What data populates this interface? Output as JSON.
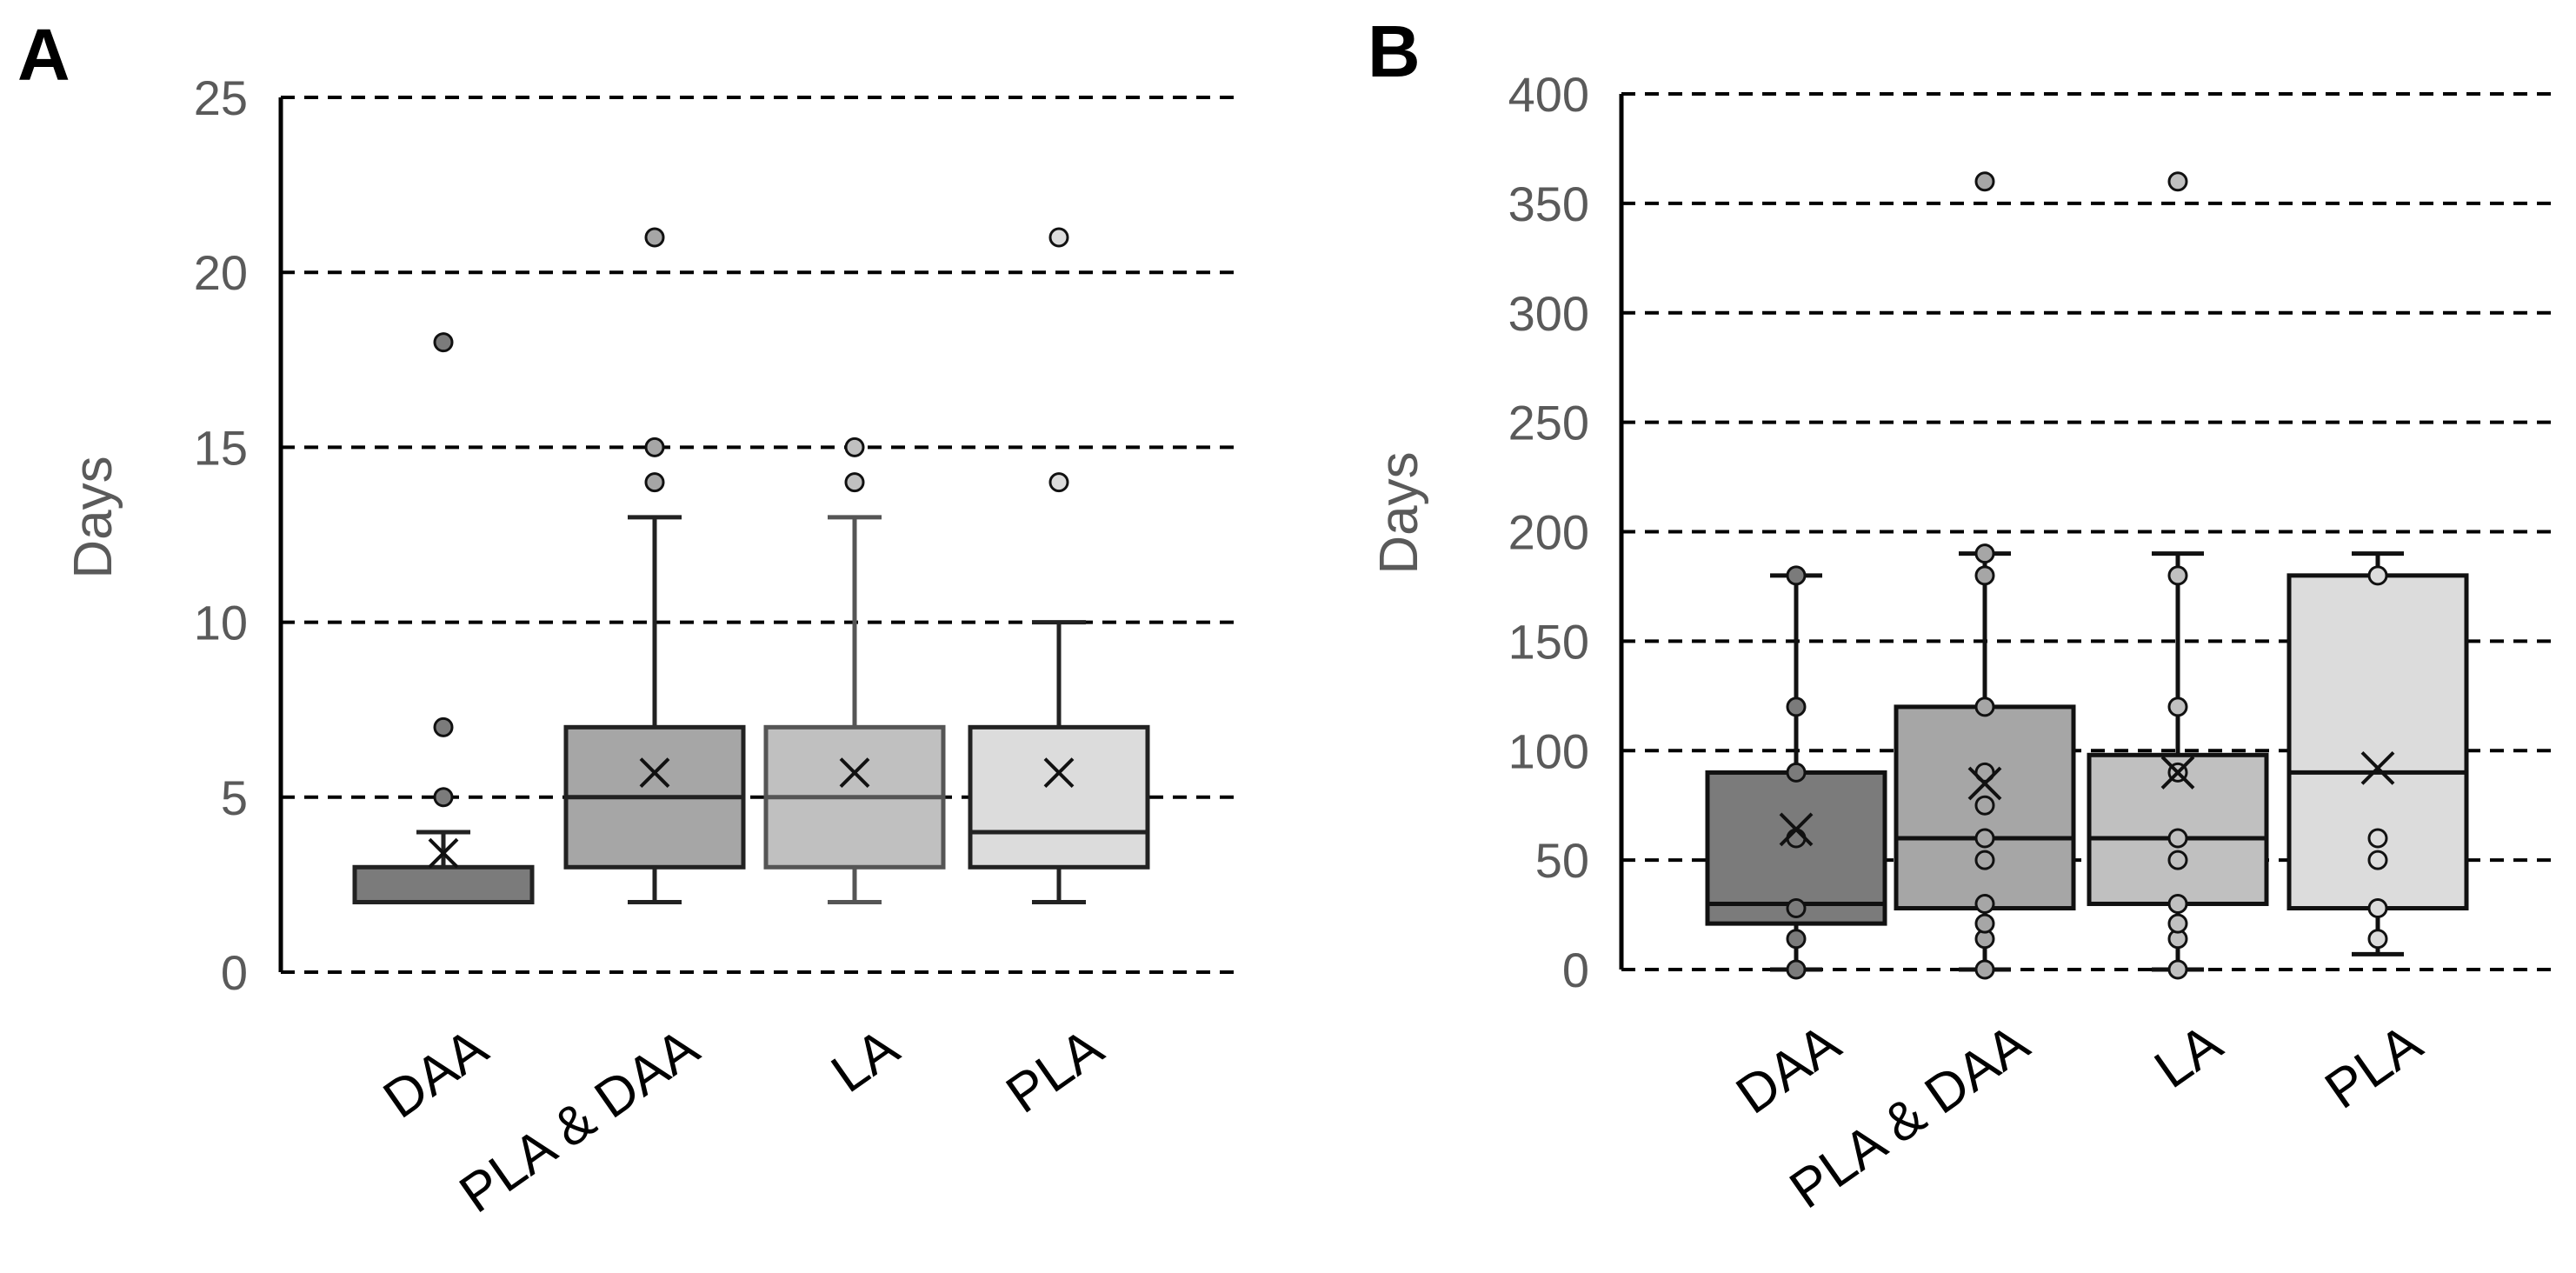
{
  "chart_data": [
    {
      "panel": "A",
      "type": "box",
      "title": "",
      "xlabel": "",
      "ylabel": "Days",
      "ylim": [
        0,
        25
      ],
      "yticks": [
        0,
        5,
        10,
        15,
        20,
        25
      ],
      "grid": "horizontal dashed",
      "categories": [
        "DAA",
        "PLA & DAA",
        "LA",
        "PLA"
      ],
      "boxes": [
        {
          "name": "DAA",
          "fill": "#7b7b7b",
          "stroke": "#222222",
          "min": 2,
          "q1": 2,
          "median": 2,
          "q3": 3,
          "max": 4,
          "mean": 3.4,
          "outliers": [
            5,
            7,
            18
          ],
          "points": []
        },
        {
          "name": "PLA & DAA",
          "fill": "#a6a6a6",
          "stroke": "#222222",
          "min": 2,
          "q1": 3,
          "median": 5,
          "q3": 7,
          "max": 13,
          "mean": 5.7,
          "outliers": [
            14,
            15,
            21
          ],
          "points": []
        },
        {
          "name": "LA",
          "fill": "#c0c0c0",
          "stroke": "#555555",
          "min": 2,
          "q1": 3,
          "median": 5,
          "q3": 7,
          "max": 13,
          "mean": 5.7,
          "outliers": [
            14,
            15
          ],
          "points": []
        },
        {
          "name": "PLA",
          "fill": "#dcdcdc",
          "stroke": "#222222",
          "min": 2,
          "q1": 3,
          "median": 4,
          "q3": 7,
          "max": 10,
          "mean": 5.7,
          "outliers": [
            14,
            21
          ],
          "points": []
        }
      ]
    },
    {
      "panel": "B",
      "type": "box",
      "title": "",
      "xlabel": "",
      "ylabel": "Days",
      "ylim": [
        0,
        400
      ],
      "yticks": [
        0,
        50,
        100,
        150,
        200,
        250,
        300,
        350,
        400
      ],
      "grid": "horizontal dashed",
      "categories": [
        "DAA",
        "PLA & DAA",
        "LA",
        "PLA"
      ],
      "boxes": [
        {
          "name": "DAA",
          "fill": "#7b7b7b",
          "stroke": "#111111",
          "min": 0,
          "q1": 21,
          "median": 30,
          "q3": 90,
          "max": 180,
          "mean": 64,
          "outliers": [],
          "points": [
            0,
            14,
            28,
            60,
            90,
            120,
            180
          ]
        },
        {
          "name": "PLA & DAA",
          "fill": "#a6a6a6",
          "stroke": "#111111",
          "min": 0,
          "q1": 28,
          "median": 60,
          "q3": 120,
          "max": 190,
          "mean": 85,
          "outliers": [
            360
          ],
          "points": [
            0,
            14,
            21,
            30,
            50,
            60,
            75,
            90,
            120,
            180,
            190
          ]
        },
        {
          "name": "LA",
          "fill": "#c0c0c0",
          "stroke": "#111111",
          "min": 0,
          "q1": 30,
          "median": 60,
          "q3": 98,
          "max": 190,
          "mean": 90,
          "outliers": [
            360
          ],
          "points": [
            0,
            14,
            21,
            30,
            50,
            60,
            90,
            120,
            180
          ]
        },
        {
          "name": "PLA",
          "fill": "#dcdcdc",
          "stroke": "#111111",
          "min": 7,
          "q1": 28,
          "median": 90,
          "q3": 180,
          "max": 190,
          "mean": 92,
          "outliers": [],
          "points": [
            14,
            28,
            50,
            60,
            180
          ]
        }
      ]
    }
  ]
}
